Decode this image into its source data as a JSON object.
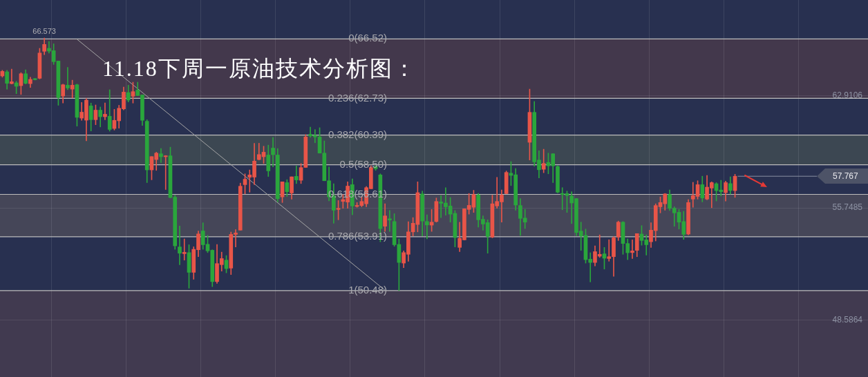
{
  "chart_data": {
    "type": "candlestick",
    "title": "11.18下周一原油技术分析图：",
    "categories": [
      null,
      null,
      null,
      null,
      null,
      null,
      null,
      null,
      null,
      null,
      null,
      null,
      null,
      null,
      null,
      null,
      null,
      null,
      null,
      null,
      null,
      null,
      null,
      null,
      null,
      null,
      null,
      null,
      null,
      null,
      null,
      null,
      null,
      null,
      null,
      null,
      null,
      null,
      null,
      null,
      null,
      null,
      null,
      null,
      null,
      null,
      null,
      null,
      null,
      null,
      null,
      null,
      null,
      null,
      null,
      null,
      null,
      null,
      null,
      null,
      null,
      null,
      null,
      null,
      null,
      null,
      null,
      null,
      null,
      null,
      null,
      null,
      null,
      null,
      null,
      null,
      null,
      null,
      null,
      null,
      null,
      null,
      null,
      null,
      null,
      null,
      null,
      null,
      null,
      null,
      null,
      null,
      null,
      null,
      null,
      null,
      null,
      null,
      null,
      null,
      null,
      null,
      null,
      null,
      null,
      null,
      null,
      null,
      null,
      null,
      null,
      null,
      null,
      null,
      null,
      null,
      null,
      null,
      null,
      null,
      null,
      null,
      null,
      null,
      null,
      null,
      null,
      null,
      null,
      null,
      null,
      null,
      null,
      null,
      null,
      null,
      null,
      null,
      null,
      null,
      null,
      null,
      null,
      null,
      null,
      null,
      null,
      null,
      null,
      null,
      null,
      null,
      null,
      null,
      null,
      null,
      null,
      null,
      null,
      null,
      null,
      null,
      null,
      null,
      null,
      null,
      null,
      null,
      null,
      null,
      null,
      null,
      null,
      null,
      null,
      null,
      null,
      null,
      null,
      null,
      null,
      null,
      null,
      null,
      null,
      null
    ],
    "ohlc": [
      [
        64.16,
        64.52,
        64.08,
        64.45
      ],
      [
        64.42,
        64.52,
        63.32,
        63.69
      ],
      [
        63.67,
        64.6,
        63.64,
        63.79
      ],
      [
        63.72,
        63.82,
        63.03,
        63.5
      ],
      [
        63.54,
        64.37,
        62.98,
        64.3
      ],
      [
        64.3,
        64.55,
        63.64,
        63.69
      ],
      [
        63.67,
        64.08,
        63.42,
        63.94
      ],
      [
        63.99,
        64.0,
        63.9,
        63.92
      ],
      [
        64.01,
        65.92,
        63.97,
        65.62
      ],
      [
        65.73,
        66.573,
        65.52,
        66.17
      ],
      [
        65.92,
        66.36,
        65.62,
        65.74
      ],
      [
        65.77,
        66.21,
        64.89,
        65.07
      ],
      [
        65.11,
        65.11,
        62.29,
        62.79
      ],
      [
        62.88,
        63.64,
        62.44,
        63.6
      ],
      [
        63.57,
        64.7,
        63.28,
        63.39
      ],
      [
        63.32,
        63.89,
        62.76,
        63.57
      ],
      [
        63.6,
        63.64,
        60.96,
        61.52
      ],
      [
        61.47,
        62.47,
        61.33,
        61.85
      ],
      [
        61.34,
        62.72,
        60.03,
        62.62
      ],
      [
        62.25,
        62.43,
        60.65,
        61.37
      ],
      [
        61.37,
        62.31,
        61.05,
        61.98
      ],
      [
        61.98,
        62.18,
        60.91,
        61.56
      ],
      [
        61.56,
        62.44,
        61.37,
        61.72
      ],
      [
        61.59,
        63.28,
        60.64,
        60.75
      ],
      [
        60.81,
        62.03,
        60.71,
        61.33
      ],
      [
        61.3,
        62.29,
        60.83,
        62.1
      ],
      [
        62.06,
        63.45,
        62.0,
        63.13
      ],
      [
        63.1,
        63.57,
        62.5,
        62.62
      ],
      [
        62.87,
        63.76,
        62.43,
        63.16
      ],
      [
        63.26,
        63.76,
        62.91,
        62.91
      ],
      [
        62.95,
        62.95,
        61.0,
        61.33
      ],
      [
        61.27,
        61.37,
        57.36,
        58.17
      ],
      [
        58.17,
        59.02,
        57.54,
        59.02
      ],
      [
        58.83,
        59.3,
        58.14,
        59.24
      ],
      [
        59.2,
        59.53,
        58.64,
        59.01
      ],
      [
        59.01,
        59.09,
        56.92,
        59.07
      ],
      [
        59.07,
        59.62,
        56.38,
        56.41
      ],
      [
        56.43,
        56.56,
        53.11,
        53.33
      ],
      [
        53.26,
        54.59,
        52.13,
        52.86
      ],
      [
        52.83,
        53.77,
        52.42,
        52.92
      ],
      [
        52.9,
        53.4,
        50.63,
        51.64
      ],
      [
        51.64,
        53.27,
        51.2,
        53.11
      ],
      [
        53.08,
        54.28,
        52.64,
        54.09
      ],
      [
        54.28,
        54.8,
        53.11,
        53.4
      ],
      [
        53.43,
        54.0,
        52.9,
        53.01
      ],
      [
        53.05,
        53.08,
        50.73,
        51.05
      ],
      [
        51.05,
        53.42,
        50.94,
        52.2
      ],
      [
        52.13,
        52.93,
        51.72,
        52.52
      ],
      [
        52.42,
        52.71,
        51.61,
        51.88
      ],
      [
        51.91,
        54.21,
        51.5,
        54.06
      ],
      [
        54.06,
        54.36,
        53.26,
        54.15
      ],
      [
        54.33,
        57.33,
        54.33,
        57.13
      ],
      [
        57.23,
        57.92,
        56.64,
        57.58
      ],
      [
        57.7,
        58.17,
        56.75,
        57.85
      ],
      [
        57.71,
        59.86,
        57.23,
        58.73
      ],
      [
        58.83,
        59.87,
        58.8,
        59.15
      ],
      [
        59.01,
        59.68,
        58.58,
        59.3
      ],
      [
        59.12,
        59.75,
        57.75,
        58.11
      ],
      [
        59.56,
        60.24,
        58.36,
        59.14
      ],
      [
        59.12,
        59.53,
        56.13,
        56.34
      ],
      [
        56.45,
        57.41,
        56.09,
        57.41
      ],
      [
        57.36,
        57.55,
        56.48,
        56.78
      ],
      [
        56.7,
        57.73,
        56.31,
        57.73
      ],
      [
        57.76,
        58.42,
        57.3,
        57.53
      ],
      [
        57.51,
        58.58,
        57.3,
        58.32
      ],
      [
        58.33,
        60.42,
        58.33,
        60.27
      ],
      [
        60.44,
        60.9,
        60.24,
        60.34
      ],
      [
        60.37,
        60.74,
        59.9,
        60.27
      ],
      [
        60.27,
        60.86,
        59.24,
        59.24
      ],
      [
        59.24,
        60.02,
        57.48,
        57.48
      ],
      [
        57.48,
        58.36,
        56.2,
        56.45
      ],
      [
        56.53,
        57.29,
        54.77,
        55.6
      ],
      [
        55.65,
        56.22,
        54.99,
        55.72
      ],
      [
        56.16,
        56.6,
        55.72,
        56.28
      ],
      [
        56.12,
        57.41,
        55.72,
        57.14
      ],
      [
        57.23,
        57.6,
        55.31,
        55.87
      ],
      [
        55.84,
        56.09,
        55.79,
        55.91
      ],
      [
        55.9,
        56.45,
        55.82,
        56.16
      ],
      [
        56.01,
        57.11,
        55.82,
        57.04
      ],
      [
        56.97,
        58.43,
        56.97,
        58.32
      ],
      [
        58.39,
        58.43,
        58.14,
        58.24
      ],
      [
        57.85,
        57.92,
        53.59,
        54.43
      ],
      [
        54.58,
        56.01,
        54.25,
        55.24
      ],
      [
        55.06,
        55.58,
        54.25,
        54.97
      ],
      [
        54.88,
        55.38,
        53.3,
        53.4
      ],
      [
        53.42,
        53.77,
        50.48,
        52.27
      ],
      [
        52.23,
        53.01,
        51.94,
        52.9
      ],
      [
        52.79,
        54.87,
        52.35,
        54.22
      ],
      [
        54.22,
        55.13,
        53.96,
        54.77
      ],
      [
        54.69,
        57.41,
        54.22,
        56.72
      ],
      [
        56.64,
        56.82,
        53.96,
        54.91
      ],
      [
        54.88,
        55.31,
        53.78,
        54.66
      ],
      [
        54.65,
        55.65,
        54.25,
        54.84
      ],
      [
        54.88,
        56.38,
        54.84,
        56.16
      ],
      [
        56.13,
        56.53,
        55.13,
        56.04
      ],
      [
        56.06,
        57.04,
        55.28,
        55.82
      ],
      [
        55.87,
        56.41,
        54.84,
        55.35
      ],
      [
        55.4,
        55.58,
        53.26,
        53.86
      ],
      [
        53.23,
        54.84,
        52.96,
        53.81
      ],
      [
        53.71,
        55.69,
        53.7,
        55.69
      ],
      [
        55.65,
        56.67,
        55.35,
        55.91
      ],
      [
        55.79,
        56.87,
        55.46,
        56.6
      ],
      [
        56.57,
        56.67,
        54.52,
        54.99
      ],
      [
        55.02,
        55.24,
        54.33,
        54.72
      ],
      [
        54.81,
        54.99,
        52.86,
        53.93
      ],
      [
        53.89,
        56.56,
        53.84,
        56.01
      ],
      [
        55.87,
        57.7,
        55.72,
        56.16
      ],
      [
        56.13,
        56.89,
        54.84,
        56.57
      ],
      [
        56.66,
        58.1,
        56.64,
        58.01
      ],
      [
        57.96,
        58.7,
        57.17,
        57.82
      ],
      [
        57.86,
        58.26,
        55.6,
        55.93
      ],
      [
        55.9,
        56.34,
        54.0,
        55.08
      ],
      [
        55.1,
        55.66,
        54.43,
        54.84
      ],
      [
        59.93,
        63.32,
        58.8,
        61.84
      ],
      [
        61.84,
        62.53,
        58.41,
        58.68
      ],
      [
        58.8,
        59.39,
        57.66,
        58.18
      ],
      [
        58.21,
        59.49,
        57.99,
        58.58
      ],
      [
        58.65,
        59.24,
        57.92,
        58.43
      ],
      [
        59.2,
        59.21,
        57.36,
        58.43
      ],
      [
        58.39,
        58.43,
        56.7,
        56.75
      ],
      [
        56.67,
        57.04,
        55.63,
        56.6
      ],
      [
        56.66,
        56.82,
        55.46,
        56.54
      ],
      [
        56.51,
        56.78,
        54.75,
        56.06
      ],
      [
        56.34,
        56.35,
        53.99,
        54.18
      ],
      [
        54.27,
        54.84,
        53.04,
        53.96
      ],
      [
        54.0,
        54.4,
        52.23,
        52.45
      ],
      [
        52.48,
        52.89,
        51.03,
        52.27
      ],
      [
        52.27,
        53.33,
        52.05,
        52.96
      ],
      [
        52.67,
        54.03,
        52.59,
        52.79
      ],
      [
        52.82,
        53.23,
        51.85,
        52.54
      ],
      [
        52.52,
        53.72,
        52.35,
        52.64
      ],
      [
        52.64,
        53.92,
        51.39,
        53.84
      ],
      [
        53.89,
        54.91,
        53.67,
        54.84
      ],
      [
        54.84,
        54.88,
        52.79,
        53.48
      ],
      [
        53.48,
        53.77,
        52.45,
        52.89
      ],
      [
        52.9,
        53.71,
        52.52,
        53.01
      ],
      [
        53.04,
        54.11,
        52.64,
        54.11
      ],
      [
        54.08,
        54.62,
        53.37,
        53.67
      ],
      [
        53.71,
        54.03,
        52.74,
        53.4
      ],
      [
        53.59,
        54.8,
        53.23,
        54.33
      ],
      [
        54.3,
        56.01,
        53.64,
        55.9
      ],
      [
        55.82,
        56.45,
        55.43,
        56.09
      ],
      [
        56.01,
        56.67,
        55.6,
        56.64
      ],
      [
        56.6,
        56.89,
        55.58,
        55.72
      ],
      [
        55.72,
        55.82,
        54.58,
        55.43
      ],
      [
        55.47,
        55.65,
        54.4,
        54.84
      ],
      [
        54.88,
        55.53,
        53.74,
        54.06
      ],
      [
        54.08,
        56.28,
        54.03,
        56.09
      ],
      [
        56.31,
        57.38,
        55.79,
        56.53
      ],
      [
        56.48,
        57.48,
        56.31,
        57.23
      ],
      [
        57.23,
        57.77,
        56.13,
        56.38
      ],
      [
        56.31,
        57.82,
        56.26,
        57.07
      ],
      [
        57.01,
        57.41,
        55.76,
        57.36
      ],
      [
        57.29,
        57.36,
        56.19,
        56.85
      ],
      [
        56.89,
        57.51,
        56.51,
        56.78
      ],
      [
        56.72,
        57.45,
        56.19,
        57.36
      ],
      [
        57.3,
        57.73,
        56.63,
        56.86
      ],
      [
        56.85,
        57.89,
        56.42,
        57.767
      ],
      null,
      null,
      null,
      null,
      null,
      null,
      null,
      null,
      null,
      null,
      null,
      null,
      null,
      null,
      null,
      null,
      null,
      null,
      null,
      null,
      null,
      null,
      null,
      null,
      null,
      null,
      null,
      null
    ],
    "colors": [
      "#e85548",
      "#2aa63c",
      "#e85548",
      "#2aa63c",
      "#e85548",
      "#2aa63c",
      "#e85548",
      "#2aa63c",
      "#e85548",
      "#e85548",
      "#2aa63c",
      "#2aa63c",
      "#2aa63c",
      "#e85548",
      "#2aa63c",
      "#e85548",
      "#2aa63c",
      "#e85548",
      "#e85548",
      "#2aa63c",
      "#e85548",
      "#2aa63c",
      "#e85548",
      "#2aa63c",
      "#e85548",
      "#e85548",
      "#e85548",
      "#2aa63c",
      "#e85548",
      "#2aa63c",
      "#2aa63c",
      "#2aa63c",
      "#e85548",
      "#e85548",
      "#2aa63c",
      "#e85548",
      "#2aa63c",
      "#2aa63c",
      "#2aa63c",
      "#e85548",
      "#2aa63c",
      "#e85548",
      "#e85548",
      "#2aa63c",
      "#2aa63c",
      "#2aa63c",
      "#e85548",
      "#e85548",
      "#2aa63c",
      "#e85548",
      "#e85548",
      "#e85548",
      "#e85548",
      "#e85548",
      "#e85548",
      "#e85548",
      "#e85548",
      "#2aa63c",
      "#2aa63c",
      "#2aa63c",
      "#e85548",
      "#2aa63c",
      "#e85548",
      "#2aa63c",
      "#e85548",
      "#e85548",
      "#2aa63c",
      "#2aa63c",
      "#2aa63c",
      "#2aa63c",
      "#2aa63c",
      "#2aa63c",
      "#e85548",
      "#e85548",
      "#e85548",
      "#2aa63c",
      "#e85548",
      "#e85548",
      "#e85548",
      "#e85548",
      "#2aa63c",
      "#2aa63c",
      "#e85548",
      "#2aa63c",
      "#2aa63c",
      "#2aa63c",
      "#e85548",
      "#e85548",
      "#e85548",
      "#e85548",
      "#2aa63c",
      "#2aa63c",
      "#e85548",
      "#e85548",
      "#2aa63c",
      "#2aa63c",
      "#2aa63c",
      "#2aa63c",
      "#e85548",
      "#e85548",
      "#e85548",
      "#e85548",
      "#2aa63c",
      "#2aa63c",
      "#2aa63c",
      "#e85548",
      "#e85548",
      "#e85548",
      "#e85548",
      "#2aa63c",
      "#2aa63c",
      "#2aa63c",
      "#2aa63c",
      "#e85548",
      "#2aa63c",
      "#2aa63c",
      "#e85548",
      "#2aa63c",
      "#2aa63c",
      "#2aa63c",
      "#2aa63c",
      "#2aa63c",
      "#2aa63c",
      "#2aa63c",
      "#2aa63c",
      "#2aa63c",
      "#2aa63c",
      "#e85548",
      "#e85548",
      "#2aa63c",
      "#e85548",
      "#e85548",
      "#e85548",
      "#2aa63c",
      "#2aa63c",
      "#e85548",
      "#e85548",
      "#2aa63c",
      "#2aa63c",
      "#e85548",
      "#e85548",
      "#e85548",
      "#e85548",
      "#2aa63c",
      "#2aa63c",
      "#2aa63c",
      "#2aa63c",
      "#e85548",
      "#e85548",
      "#e85548",
      "#2aa63c",
      "#e85548",
      "#e85548",
      "#2aa63c",
      "#2aa63c",
      "#e85548",
      "#2aa63c",
      "#e85548",
      null,
      null,
      null,
      null,
      null,
      null,
      null,
      null,
      null,
      null,
      null,
      null,
      null,
      null,
      null,
      null,
      null,
      null,
      null,
      null,
      null,
      null,
      null,
      null,
      null,
      null,
      null,
      null
    ],
    "series": [
      {
        "type": "line",
        "color": "#a6a6a6",
        "values": [
          null,
          null,
          null,
          null,
          null,
          null,
          null,
          null,
          null,
          null,
          null,
          null,
          null,
          null,
          null,
          null,
          66.5,
          null,
          null,
          null,
          null,
          null,
          null,
          null,
          null,
          null,
          null,
          null,
          null,
          null,
          null,
          null,
          null,
          null,
          null,
          null,
          null,
          null,
          null,
          null,
          null,
          null,
          null,
          null,
          null,
          null,
          null,
          null,
          null,
          null,
          null,
          null,
          null,
          null,
          null,
          null,
          null,
          null,
          null,
          null,
          null,
          null,
          null,
          null,
          null,
          null,
          null,
          null,
          null,
          null,
          null,
          null,
          null,
          null,
          null,
          null,
          null,
          null,
          null,
          null,
          null,
          null,
          50.5,
          null,
          null,
          null,
          null,
          null,
          null,
          null,
          null,
          null,
          null,
          null,
          null,
          null,
          null,
          null,
          null,
          null,
          null,
          null,
          null,
          null,
          null,
          null,
          null,
          null,
          null,
          null,
          null,
          null,
          null,
          null,
          null,
          null,
          null,
          null,
          null,
          null,
          null,
          null,
          null,
          null,
          null,
          null,
          null,
          null,
          null,
          null,
          null,
          null,
          null,
          null,
          null,
          null,
          null,
          null,
          null,
          null,
          null,
          null,
          null,
          null,
          null,
          null,
          null,
          null,
          null,
          null,
          null,
          null,
          null,
          null,
          null,
          null,
          null,
          null,
          null,
          null,
          null,
          null,
          null,
          null,
          null,
          null,
          null,
          null,
          null,
          null,
          null,
          null,
          null,
          null,
          null,
          null,
          null,
          null,
          null,
          null,
          null,
          null,
          null,
          null,
          null,
          null
        ]
      }
    ],
    "ylim": [
      44.97,
      69.0
    ],
    "yticks": [
      62.9106,
      55.7485,
      48.5864
    ],
    "tick_labels": "y",
    "grid": true,
    "bands": [
      {
        "axis": "y",
        "from": 62.73,
        "to": 66.52,
        "color": "#43384c"
      },
      {
        "axis": "y",
        "from": 58.5,
        "to": 60.39,
        "color": "#3c4752"
      },
      {
        "axis": "y",
        "from": 53.91,
        "to": 56.61,
        "color": "#454658"
      },
      {
        "axis": "y",
        "from": 44.97,
        "to": 50.48,
        "color": "#413a50"
      }
    ],
    "ref_lines": [
      {
        "axis": "y",
        "value": 66.52,
        "label": "0(66.52)",
        "color": "#bdbdbd"
      },
      {
        "axis": "y",
        "value": 62.73,
        "label": "0.236(62.73)",
        "color": "#bdbdbd"
      },
      {
        "axis": "y",
        "value": 60.39,
        "label": "0.382(60.39)",
        "color": "#bdbdbd"
      },
      {
        "axis": "y",
        "value": 58.5,
        "label": "0.5(58.50)",
        "color": "#bdbdbd"
      },
      {
        "axis": "y",
        "value": 56.61,
        "label": "0.618(56.61)",
        "color": "#bdbdbd"
      },
      {
        "axis": "y",
        "value": 53.91,
        "label": "0.786(53.91)",
        "color": "#bdbdbd"
      },
      {
        "axis": "y",
        "value": 50.48,
        "label": "1(50.48)",
        "color": "#bdbdbd"
      }
    ],
    "annotations": [
      {
        "text": "66.573",
        "y": 66.573
      },
      "57.767"
    ]
  }
}
